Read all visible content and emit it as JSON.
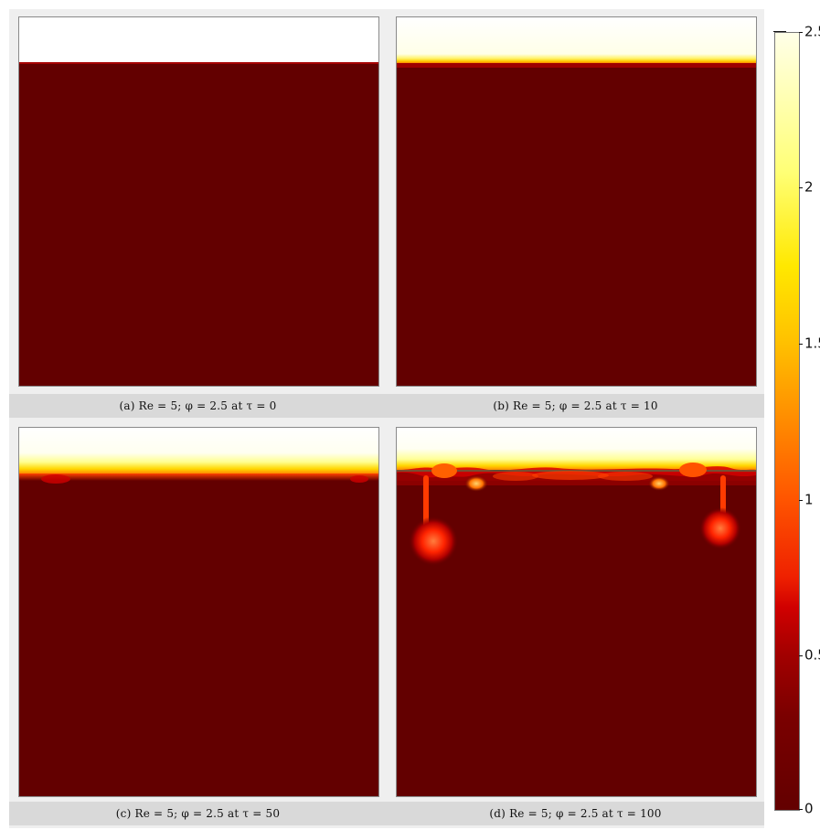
{
  "chart_data": [
    {
      "type": "heatmap",
      "panel": "a",
      "caption": "(a) Re = 5; φ = 2.5 at τ = 0",
      "interface": "flat sharp boundary",
      "fingers": [],
      "top_layer_value": 2.5,
      "bottom_layer_value": 0
    },
    {
      "type": "heatmap",
      "panel": "b",
      "caption": "(b) Re = 5; φ = 2.5 at τ = 10",
      "interface": "flat with thin yellow transition",
      "fingers": [],
      "top_layer_value": 2.5,
      "bottom_layer_value": 0
    },
    {
      "type": "heatmap",
      "panel": "c",
      "caption": "(c) Re = 5; φ = 2.5 at τ = 50",
      "interface": "wider diffused transition",
      "fingers": [],
      "top_layer_value": 2.5,
      "bottom_layer_value": 0
    },
    {
      "type": "heatmap",
      "panel": "d",
      "caption": "(d) Re = 5; φ = 2.5 at τ = 100",
      "interface": "wavy interface with plume fingers",
      "fingers": [
        {
          "side": "left",
          "depth": 0.18
        },
        {
          "side": "right",
          "depth": 0.16
        }
      ],
      "top_layer_value": 2.5,
      "bottom_layer_value": 0
    }
  ],
  "colorbar": {
    "min": 0,
    "max": 2.5,
    "ticks": [
      "0",
      "0.5",
      "1",
      "1.5",
      "2",
      "2.5"
    ],
    "colors": {
      "dark": "#630000",
      "red": "#d00000",
      "orange": "#ff8b00",
      "yellow": "#ffe800",
      "white": "#ffffe8"
    }
  }
}
